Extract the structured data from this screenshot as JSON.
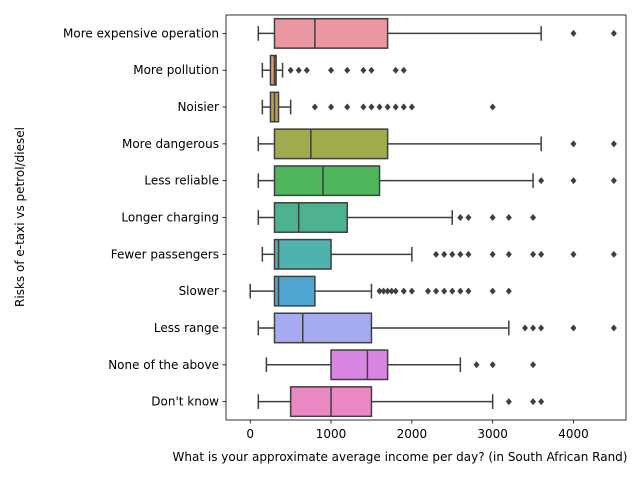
{
  "chart_data": {
    "type": "boxplot",
    "orientation": "horizontal",
    "xlabel": "What is your approximate average income per day? (in South African Rand)",
    "ylabel": "Risks of e-taxi vs petrol/diesel",
    "xlim": [
      -300,
      4650
    ],
    "xticks": [
      0,
      1000,
      2000,
      3000,
      4000
    ],
    "grid": false,
    "categories": [
      "More expensive operation",
      "More pollution",
      "Noisier",
      "More dangerous",
      "Less reliable",
      "Longer charging",
      "Fewer passengers",
      "Slower",
      "Less range",
      "None of the above",
      "Don't know"
    ],
    "series": [
      {
        "category": "More expensive operation",
        "color": "#ea96a3",
        "whisker_low": 100,
        "q1": 300,
        "median": 800,
        "q3": 1700,
        "whisker_high": 3600,
        "outliers": [
          4000,
          4500
        ]
      },
      {
        "category": "More pollution",
        "color": "#d89c61",
        "whisker_low": 150,
        "q1": 250,
        "median": 300,
        "q3": 320,
        "whisker_high": 400,
        "outliers": [
          500,
          600,
          700,
          1000,
          1200,
          1400,
          1500,
          1800,
          1900
        ]
      },
      {
        "category": "Noisier",
        "color": "#b5a554",
        "whisker_low": 150,
        "q1": 250,
        "median": 300,
        "q3": 350,
        "whisker_high": 500,
        "outliers": [
          800,
          1000,
          1200,
          1400,
          1500,
          1600,
          1700,
          1800,
          1900,
          2000,
          3000
        ]
      },
      {
        "category": "More dangerous",
        "color": "#a0ab4d",
        "whisker_low": 100,
        "q1": 300,
        "median": 750,
        "q3": 1700,
        "whisker_high": 3600,
        "outliers": [
          4000,
          4500
        ]
      },
      {
        "category": "Less reliable",
        "color": "#4eb75b",
        "whisker_low": 100,
        "q1": 300,
        "median": 900,
        "q3": 1600,
        "whisker_high": 3500,
        "outliers": [
          3600,
          4000,
          4500
        ]
      },
      {
        "category": "Longer charging",
        "color": "#4db38f",
        "whisker_low": 100,
        "q1": 300,
        "median": 600,
        "q3": 1200,
        "whisker_high": 2500,
        "outliers": [
          2600,
          2700,
          3000,
          3200,
          3500
        ]
      },
      {
        "category": "Fewer passengers",
        "color": "#4db3ac",
        "whisker_low": 150,
        "q1": 300,
        "median": 350,
        "q3": 1000,
        "whisker_high": 2000,
        "outliers": [
          2300,
          2400,
          2500,
          2600,
          2700,
          3000,
          3200,
          3500,
          3600,
          4000,
          4500
        ]
      },
      {
        "category": "Slower",
        "color": "#4ea6d2",
        "whisker_low": 0,
        "q1": 300,
        "median": 350,
        "q3": 800,
        "whisker_high": 1500,
        "outliers": [
          1600,
          1650,
          1700,
          1750,
          1800,
          1900,
          2000,
          2200,
          2300,
          2400,
          2500,
          2600,
          2700,
          3000,
          3200
        ]
      },
      {
        "category": "Less range",
        "color": "#a6aaf0",
        "whisker_low": 100,
        "q1": 300,
        "median": 650,
        "q3": 1500,
        "whisker_high": 3200,
        "outliers": [
          3400,
          3500,
          3600,
          4000,
          4500
        ]
      },
      {
        "category": "None of the above",
        "color": "#d886e2",
        "whisker_low": 200,
        "q1": 1000,
        "median": 1450,
        "q3": 1700,
        "whisker_high": 2600,
        "outliers": [
          2800,
          3000,
          3500
        ]
      },
      {
        "category": "Don't know",
        "color": "#ea88c3",
        "whisker_low": 100,
        "q1": 500,
        "median": 1000,
        "q3": 1500,
        "whisker_high": 3000,
        "outliers": [
          3200,
          3500,
          3600
        ]
      }
    ]
  }
}
